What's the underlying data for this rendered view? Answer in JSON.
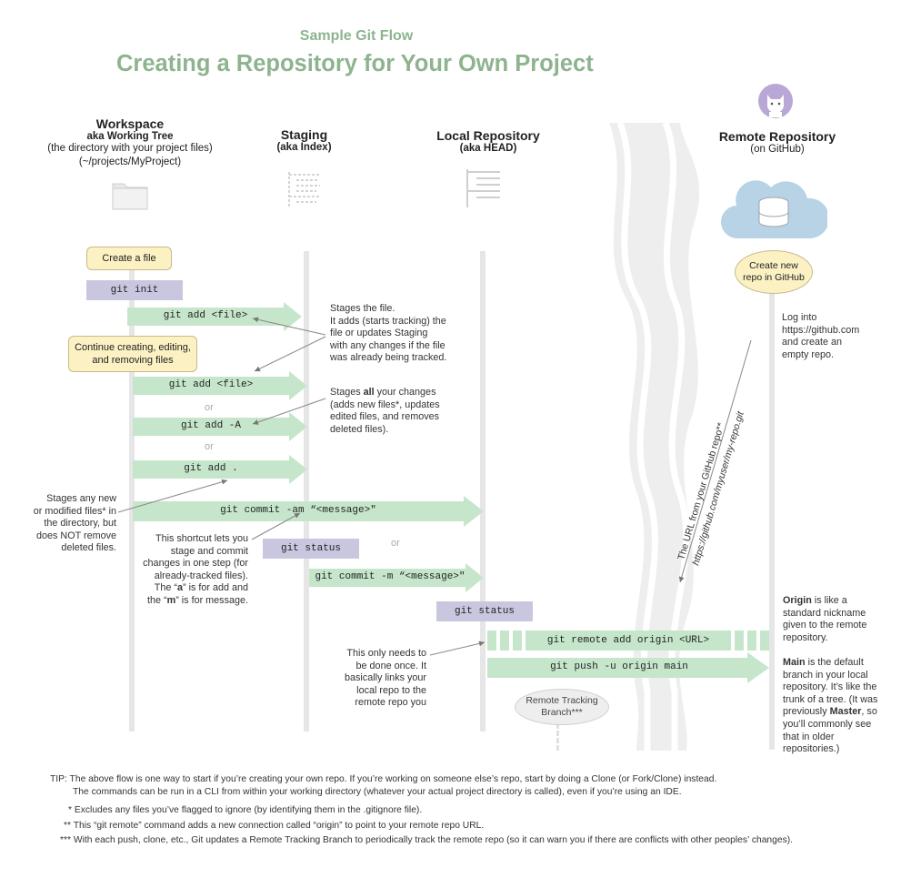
{
  "header": {
    "subtitle": "Sample Git Flow",
    "title": "Creating a Repository for Your Own Project"
  },
  "columns": {
    "workspace": {
      "title": "Workspace",
      "aka": "aka Working Tree",
      "desc": "(the directory with your project files)",
      "path": "(~/projects/MyProject)"
    },
    "staging": {
      "title": "Staging",
      "aka": "(aka Index)"
    },
    "local": {
      "title": "Local Repository",
      "aka": "(aka HEAD)"
    },
    "remote": {
      "title": "Remote Repository",
      "aka": "(on GitHub)"
    }
  },
  "bubbles": {
    "create_file": "Create a file",
    "continue": [
      "Continue creating, editing,",
      "and removing files"
    ],
    "create_repo": [
      "Create new",
      "repo in GitHub"
    ],
    "tracking_branch": [
      "Remote Tracking",
      "Branch***"
    ]
  },
  "commands": {
    "init": "git init",
    "add_file_1": "git add <file>",
    "add_file_2": "git add <file>",
    "add_all": "git add -A",
    "add_dot": "git add .",
    "commit_am": "git commit -am “<message>\"",
    "status_1": "git status",
    "commit_m": "git commit -m “<message>\"",
    "status_2": "git status",
    "remote_add": "git remote add origin <URL>",
    "push": "git push -u origin main"
  },
  "or_word": "or",
  "notes": {
    "stages_file": [
      "Stages the file.",
      "It adds (starts tracking) the",
      "file or updates Staging",
      "with any changes if the file",
      "was already being tracked."
    ],
    "stages_all": {
      "line1_pre": "Stages ",
      "line1_bold": "all",
      "line1_post": " your changes",
      "rest": [
        "(adds new files*, updates",
        "edited files, and removes",
        "deleted files)."
      ]
    },
    "stages_new": [
      "Stages any new",
      "or modified files* in",
      "the directory, but",
      "does NOT remove",
      "deleted files."
    ],
    "shortcut": {
      "lines": [
        "This shortcut lets you",
        "stage and commit",
        "changes in one step (for",
        "already-tracked files)."
      ],
      "a_pre": "The “",
      "a_bold": "a",
      "a_post": "” is for add and",
      "m_pre": "the “",
      "m_bold": "m",
      "m_post": "” is for message."
    },
    "once": [
      "This only needs to",
      "be done once. It",
      "basically links your",
      "local repo to  the",
      "remote repo you"
    ],
    "login": [
      "Log into",
      "https://github.com",
      "and create an",
      "empty repo."
    ],
    "origin": {
      "bold": "Origin",
      "rest": [
        " is like a",
        "standard nickname",
        "given to the remote",
        "repository."
      ]
    },
    "main": {
      "bold": "Main",
      "line1": " is the default",
      "lines": [
        "branch in your local",
        "repository. It’s like the",
        "trunk of a tree. (It was"
      ],
      "prev_pre": "previously ",
      "prev_bold": "Master",
      "prev_post": ", so",
      "tail": [
        "you’ll commonly see",
        "that in older",
        "repositories.)"
      ]
    },
    "url_label": "The URL from your GitHub repo**",
    "url_value": "https://github.com/myuser/my-repo.git"
  },
  "footer": {
    "tip1": "TIP: The above flow is one way to start if you’re creating your own repo. If you’re working on someone else’s repo, start by doing a Clone (or Fork/Clone) instead.",
    "tip2": "The commands can be run in a CLI from within your working directory (whatever your actual project directory is called), even if you’re using an IDE.",
    "fn1": "* Excludes any files you’ve flagged to ignore (by identifying them in the .gitignore file).",
    "fn2": "** This “git remote” command adds a new connection called “origin” to point to your remote repo URL.",
    "fn3": "*** With each push, clone, etc., Git updates a Remote Tracking Branch to periodically track the remote repo (so it can warn you if there are conflicts with other peoples’ changes)."
  },
  "colors": {
    "title_green": "#8db48f",
    "command_green": "#c6e6cc",
    "command_purple": "#c9c7e0",
    "note_yellow": "#fbf1c3",
    "cloud_blue": "#b8d3e6",
    "lane_gray": "#e6e6e6"
  },
  "icons": [
    "folder-icon",
    "staging-index-icon",
    "local-repo-icon",
    "github-cat-icon",
    "cloud-database-icon"
  ]
}
